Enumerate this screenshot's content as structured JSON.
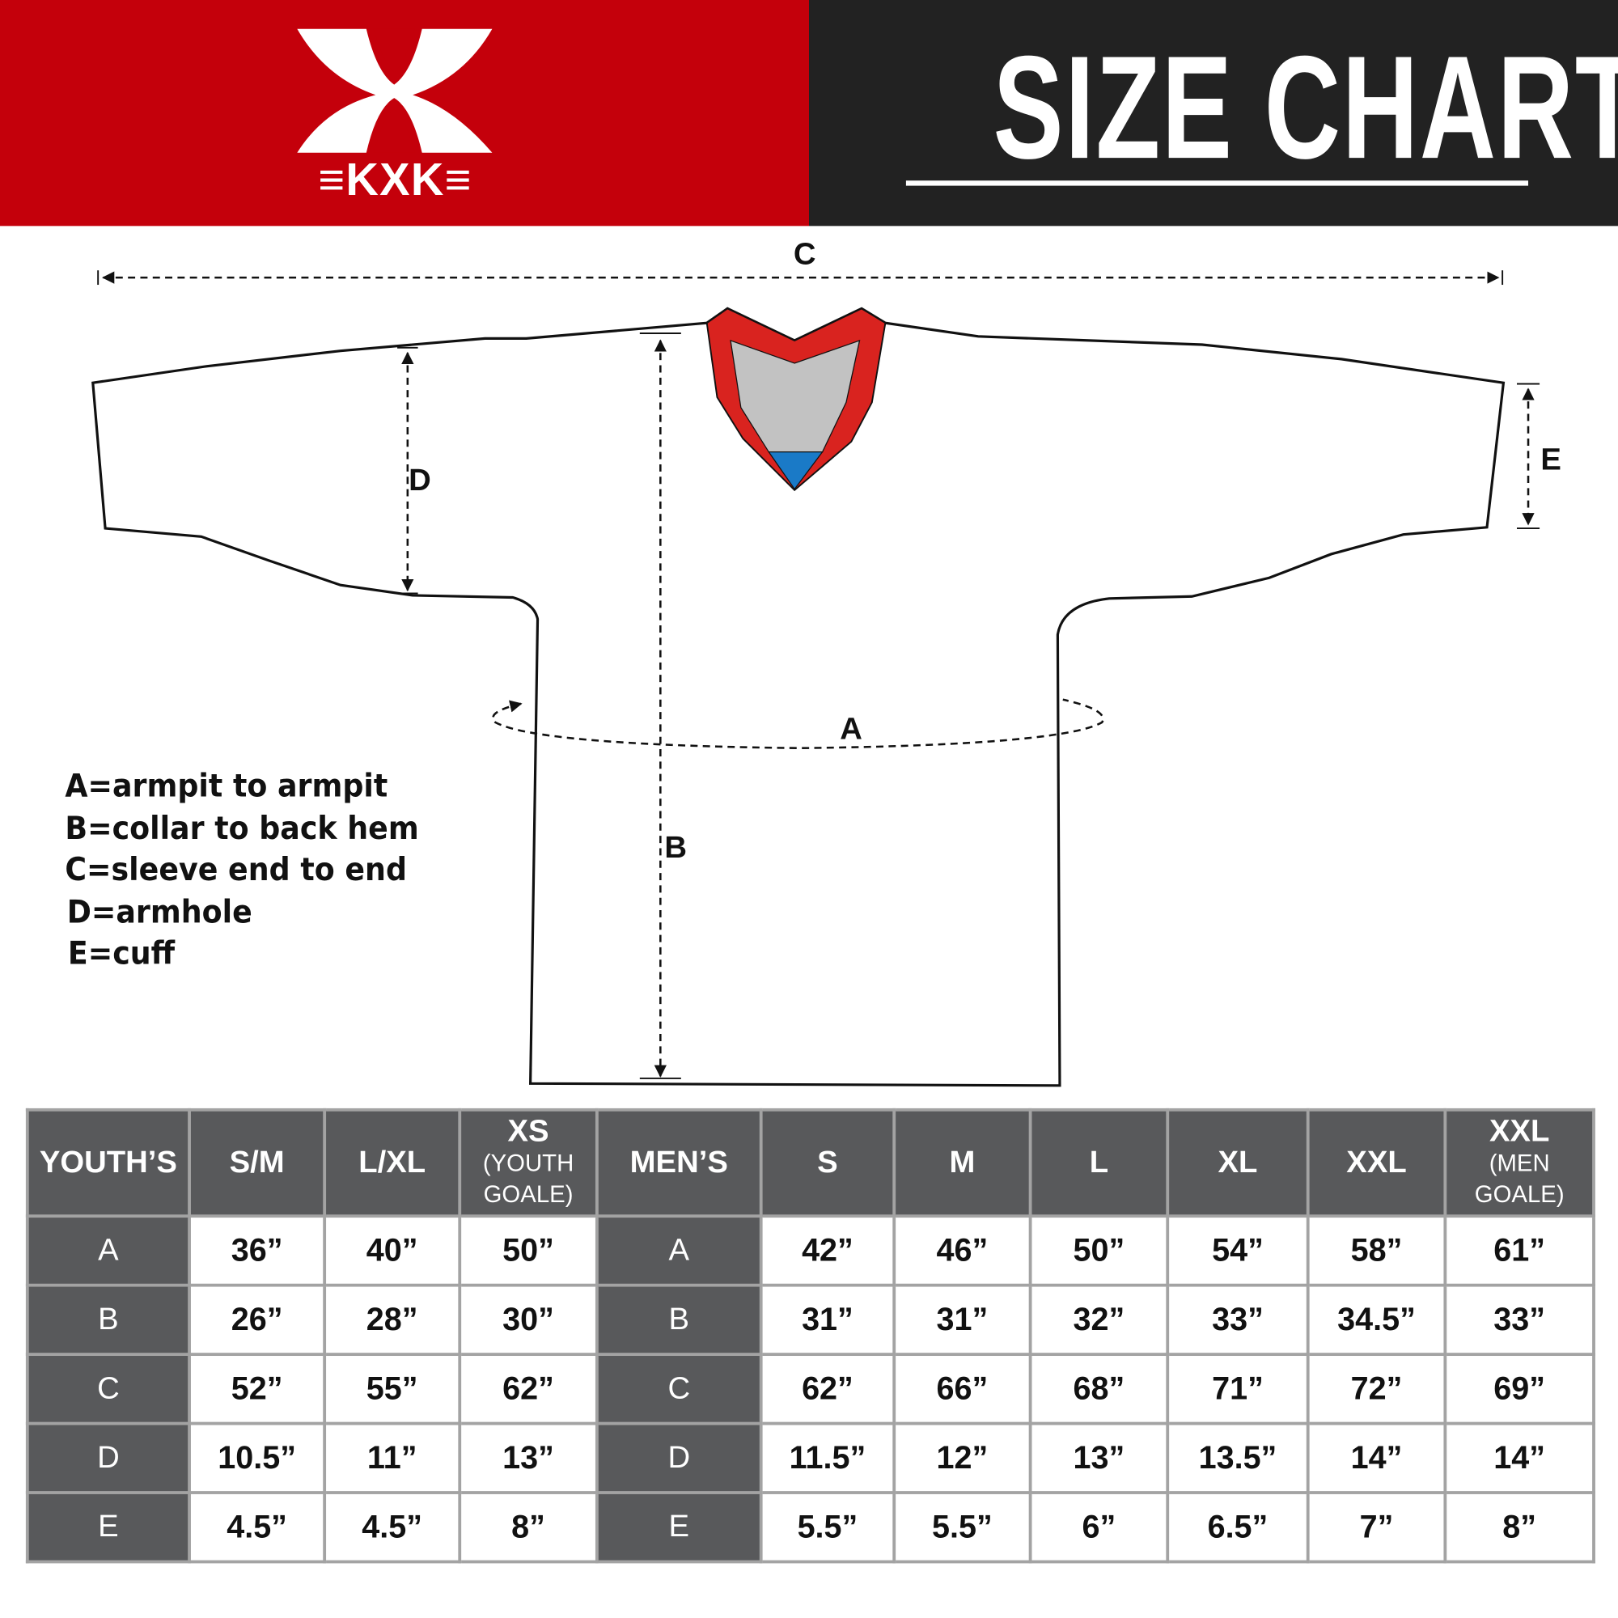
{
  "header": {
    "brand": "KXK",
    "brand_display": "≡KXK≡",
    "title": "SIZE CHART",
    "colors": {
      "brand_red": "#c4000b",
      "title_bg": "#222222",
      "collar_red": "#d9231f",
      "collar_gray": "#c2c2c2",
      "collar_blue": "#1a7ac7",
      "table_dark": "#58595b"
    }
  },
  "diagram": {
    "labels": {
      "a": "A",
      "b": "B",
      "c": "C",
      "d": "D",
      "e": "E"
    }
  },
  "legend": [
    "A=armpit to armpit",
    "B=collar to back hem",
    "C=sleeve end to end",
    "D=armhole",
    "E=cuff"
  ],
  "table": {
    "youth_header": "YOUTH’S",
    "men_header": "MEN’S",
    "youth_sizes": [
      {
        "label": "S/M",
        "sub": ""
      },
      {
        "label": "L/XL",
        "sub": ""
      },
      {
        "label": "XS",
        "sub": "(YOUTH GOALE)"
      }
    ],
    "men_sizes": [
      {
        "label": "S",
        "sub": ""
      },
      {
        "label": "M",
        "sub": ""
      },
      {
        "label": "L",
        "sub": ""
      },
      {
        "label": "XL",
        "sub": ""
      },
      {
        "label": "XXL",
        "sub": ""
      },
      {
        "label": "XXL",
        "sub": "(MEN GOALE)"
      }
    ],
    "rows": [
      {
        "label": "A",
        "youth": [
          "36”",
          "40”",
          "50”"
        ],
        "men": [
          "42”",
          "46”",
          "50”",
          "54”",
          "58”",
          "61”"
        ]
      },
      {
        "label": "B",
        "youth": [
          "26”",
          "28”",
          "30”"
        ],
        "men": [
          "31”",
          "31”",
          "32”",
          "33”",
          "34.5”",
          "33”"
        ]
      },
      {
        "label": "C",
        "youth": [
          "52”",
          "55”",
          "62”"
        ],
        "men": [
          "62”",
          "66”",
          "68”",
          "71”",
          "72”",
          "69”"
        ]
      },
      {
        "label": "D",
        "youth": [
          "10.5”",
          "11”",
          "13”"
        ],
        "men": [
          "11.5”",
          "12”",
          "13”",
          "13.5”",
          "14”",
          "14”"
        ]
      },
      {
        "label": "E",
        "youth": [
          "4.5”",
          "4.5”",
          "8”"
        ],
        "men": [
          "5.5”",
          "5.5”",
          "6”",
          "6.5”",
          "7”",
          "8”"
        ]
      }
    ]
  }
}
